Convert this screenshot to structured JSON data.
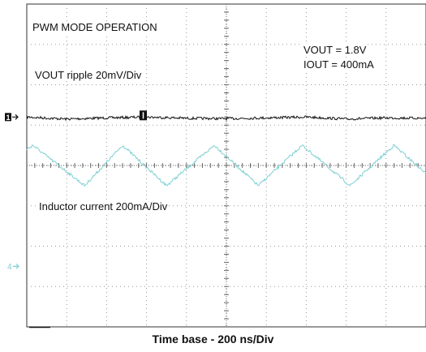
{
  "chart_data": {
    "type": "line",
    "title": "PWM MODE OPERATION",
    "xlabel": "Time base - 200 ns/Div",
    "ylabel": "",
    "grid": true,
    "x_divisions": 10,
    "y_divisions": 8,
    "annotations": {
      "vout": "VOUT = 1.8V",
      "iout": "IOUT = 400mA",
      "channel1_label": "VOUT  ripple 20mV/Div",
      "channel4_label": "Inductor current 200mA/Div"
    },
    "channel_markers": [
      "1",
      "4"
    ],
    "series": [
      {
        "name": "VOUT  ripple 20mV/Div",
        "color": "#111111",
        "reference_div": 5.2,
        "x_div": [
          0,
          1,
          2,
          3,
          4,
          5,
          6,
          7,
          8,
          9,
          10
        ],
        "y_div": [
          5.2,
          5.15,
          5.18,
          5.2,
          5.17,
          5.16,
          5.18,
          5.2,
          5.15,
          5.18,
          5.17
        ]
      },
      {
        "name": "Inductor current 200mA/Div",
        "color": "#7ecfd3",
        "reference_div": 1.5,
        "x_div": [
          0,
          0.15,
          1.45,
          2.4,
          3.5,
          4.7,
          5.8,
          6.9,
          8.1,
          9.2,
          10
        ],
        "y_div": [
          4.4,
          4.5,
          3.5,
          4.5,
          3.5,
          4.5,
          3.5,
          4.5,
          3.5,
          4.5,
          3.8
        ]
      }
    ]
  }
}
